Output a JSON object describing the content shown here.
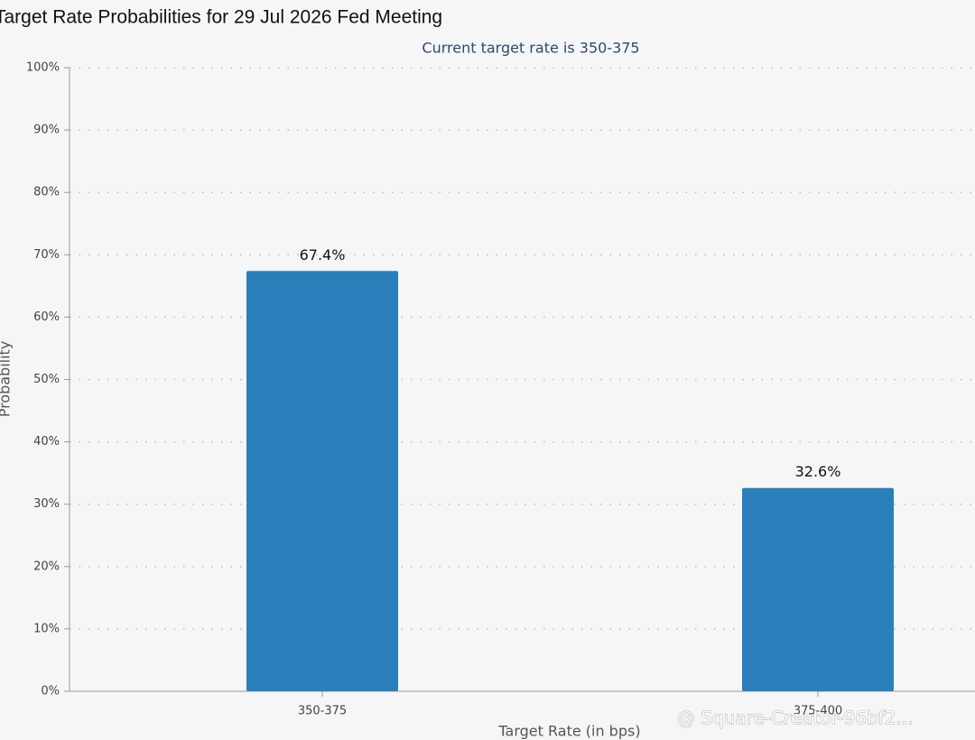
{
  "chart_data": {
    "type": "bar",
    "title": "Target Rate Probabilities for 29 Jul 2026 Fed Meeting",
    "subtitle": "Current target rate is 350-375",
    "x_label": "Target Rate (in bps)",
    "y_label": "Probability",
    "categories": [
      "350-375",
      "375-400"
    ],
    "values": [
      67.4,
      32.6
    ],
    "value_labels": [
      "67.4%",
      "32.6%"
    ],
    "color": "#2a7fba",
    "ylim": [
      0,
      100
    ],
    "yticks": [
      {
        "value": 0,
        "label": "0%"
      },
      {
        "value": 10,
        "label": "10%"
      },
      {
        "value": 20,
        "label": "20%"
      },
      {
        "value": 30,
        "label": "30%"
      },
      {
        "value": 40,
        "label": "40%"
      },
      {
        "value": 50,
        "label": "50%"
      },
      {
        "value": 60,
        "label": "60%"
      },
      {
        "value": 70,
        "label": "70%"
      },
      {
        "value": 80,
        "label": "80%"
      },
      {
        "value": 90,
        "label": "90%"
      },
      {
        "value": 100,
        "label": "100%"
      }
    ],
    "grid": true,
    "watermark": "@ Square-Creator-96bf2..."
  }
}
